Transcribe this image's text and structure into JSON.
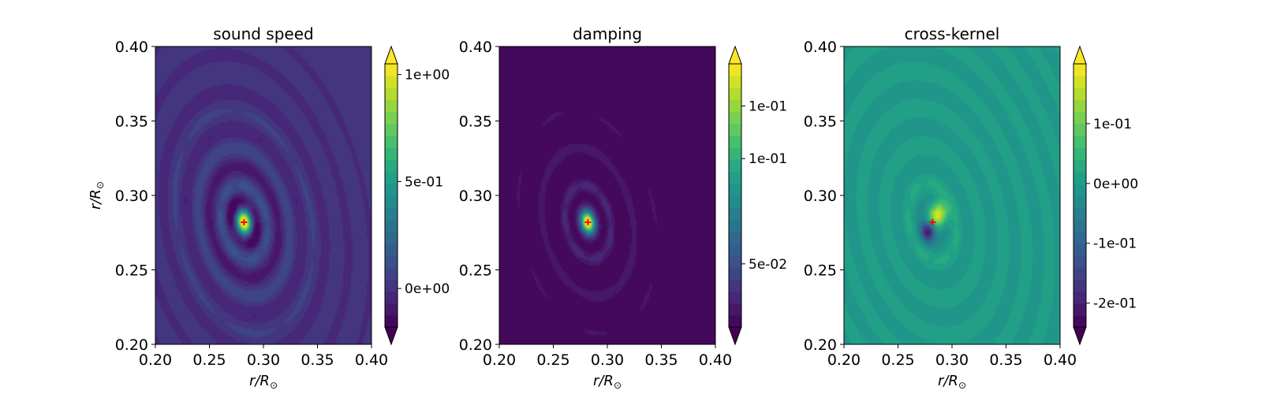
{
  "chart_data": [
    {
      "type": "heatmap",
      "title": "sound speed",
      "xlabel": "r/R",
      "xlabel_sub": "⊙",
      "ylabel": "r/R",
      "ylabel_sub": "⊙",
      "xlim": [
        0.2,
        0.4
      ],
      "ylim": [
        0.2,
        0.4
      ],
      "xticks": [
        "0.20",
        "0.25",
        "0.30",
        "0.35",
        "0.40"
      ],
      "yticks": [
        "0.20",
        "0.25",
        "0.30",
        "0.35",
        "0.40"
      ],
      "marker": {
        "symbol": "+",
        "x": 0.282,
        "y": 0.282,
        "color": "#ff0000"
      },
      "colorbar": {
        "range": [
          -0.18,
          1.05
        ],
        "extend": "both",
        "ticks": [
          {
            "value": 0.0,
            "label": "0e+00"
          },
          {
            "value": 0.5,
            "label": "5e-01"
          },
          {
            "value": 1.0,
            "label": "1e+00"
          }
        ]
      },
      "field": {
        "kind": "ring",
        "baseline": 0.0,
        "peak": 1.0,
        "amp": 0.18,
        "dip": -0.16,
        "dipAngle": -1.1
      }
    },
    {
      "type": "heatmap",
      "title": "damping",
      "xlabel": "r/R",
      "xlabel_sub": "⊙",
      "ylabel": "",
      "ylabel_sub": "",
      "xlim": [
        0.2,
        0.4
      ],
      "ylim": [
        0.2,
        0.4
      ],
      "xticks": [
        "0.20",
        "0.25",
        "0.30",
        "0.35",
        "0.40"
      ],
      "yticks": [
        "0.20",
        "0.25",
        "0.30",
        "0.35",
        "0.40"
      ],
      "marker": {
        "symbol": "+",
        "x": 0.282,
        "y": 0.282,
        "color": "#ff0000"
      },
      "colorbar": {
        "range": [
          0.02,
          0.145
        ],
        "extend": "both",
        "ticks": [
          {
            "value": 0.05,
            "label": "5e-02"
          },
          {
            "value": 0.1,
            "label": "1e-01"
          },
          {
            "value": 0.125,
            "label": "1e-01"
          }
        ]
      },
      "field": {
        "kind": "positive",
        "baseline": 0.02,
        "peak": 0.14,
        "amp": 0.02
      }
    },
    {
      "type": "heatmap",
      "title": "cross-kernel",
      "xlabel": "r/R",
      "xlabel_sub": "⊙",
      "ylabel": "",
      "ylabel_sub": "",
      "xlim": [
        0.2,
        0.4
      ],
      "ylim": [
        0.2,
        0.4
      ],
      "xticks": [
        "0.20",
        "0.25",
        "0.30",
        "0.35",
        "0.40"
      ],
      "yticks": [
        "0.20",
        "0.25",
        "0.30",
        "0.35",
        "0.40"
      ],
      "marker": {
        "symbol": "+",
        "x": 0.282,
        "y": 0.282,
        "color": "#ff0000"
      },
      "colorbar": {
        "range": [
          -0.24,
          0.2
        ],
        "extend": "both",
        "ticks": [
          {
            "value": -0.2,
            "label": "-2e-01"
          },
          {
            "value": -0.1,
            "label": "-1e-01"
          },
          {
            "value": 0.0,
            "label": "0e+00"
          },
          {
            "value": 0.1,
            "label": "1e-01"
          }
        ]
      },
      "field": {
        "kind": "dipole",
        "baseline": 0.0,
        "peak": 0.19,
        "amp": 0.035
      }
    }
  ]
}
